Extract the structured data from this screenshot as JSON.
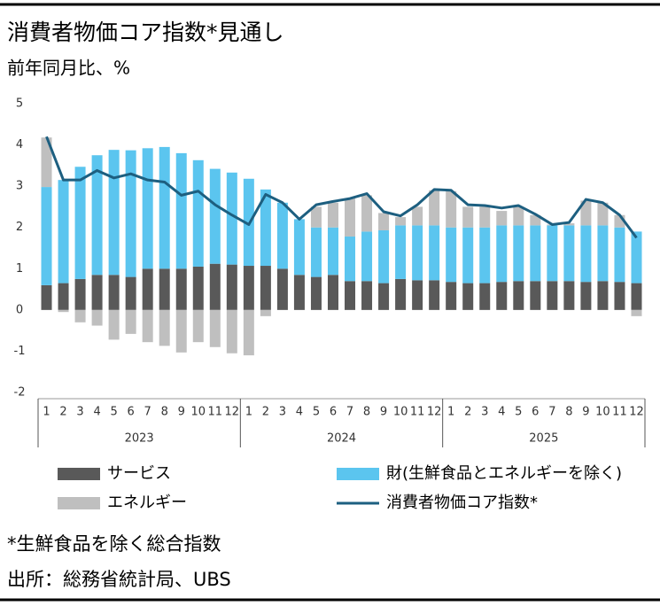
{
  "chart_data": {
    "type": "stacked_bar_line",
    "title": "消費者物価コア指数*見通し",
    "subtitle": "前年同月比、%",
    "notes": [
      "*生鮮食品を除く総合指数",
      "出所：総務省統計局、UBS"
    ],
    "categories": [
      "1",
      "2",
      "3",
      "4",
      "5",
      "6",
      "7",
      "8",
      "9",
      "10",
      "11",
      "12",
      "1",
      "2",
      "3",
      "4",
      "5",
      "6",
      "7",
      "8",
      "9",
      "10",
      "11",
      "12",
      "1",
      "2",
      "3",
      "4",
      "5",
      "6",
      "7",
      "8",
      "9",
      "10",
      "11",
      "12"
    ],
    "groups": [
      "2023",
      "2024",
      "2025"
    ],
    "ylim": [
      -2,
      5
    ],
    "yticks": [
      -2,
      -1,
      0,
      1,
      2,
      3,
      4,
      5
    ],
    "grid": false,
    "series": [
      {
        "name": "サービス",
        "color": "#595959",
        "kind": "bar",
        "values": [
          0.6,
          0.65,
          0.75,
          0.85,
          0.85,
          0.8,
          1.0,
          1.0,
          1.0,
          1.05,
          1.12,
          1.1,
          1.07,
          1.07,
          1.0,
          0.85,
          0.8,
          0.85,
          0.7,
          0.7,
          0.65,
          0.75,
          0.72,
          0.72,
          0.68,
          0.65,
          0.65,
          0.68,
          0.7,
          0.7,
          0.7,
          0.7,
          0.68,
          0.7,
          0.68,
          0.65
        ]
      },
      {
        "name": "財(生鮮食品とエネルギーを除く)",
        "color": "#5bc5ef",
        "kind": "bar",
        "values": [
          2.38,
          2.5,
          2.72,
          2.9,
          3.03,
          3.07,
          2.92,
          2.95,
          2.8,
          2.58,
          2.3,
          2.23,
          2.11,
          1.85,
          1.6,
          1.35,
          1.2,
          1.15,
          1.08,
          1.2,
          1.28,
          1.3,
          1.33,
          1.33,
          1.32,
          1.35,
          1.35,
          1.37,
          1.35,
          1.35,
          1.35,
          1.35,
          1.37,
          1.35,
          1.32,
          1.25
        ]
      },
      {
        "name": "エネルギー",
        "color": "#bfbfbf",
        "kind": "bar",
        "values": [
          1.2,
          -0.05,
          -0.3,
          -0.38,
          -0.72,
          -0.58,
          -0.78,
          -0.87,
          -1.03,
          -0.78,
          -0.9,
          -1.05,
          -1.1,
          -0.15,
          0,
          0,
          0.5,
          0.6,
          0.92,
          0.88,
          0.42,
          0.2,
          0.45,
          0.85,
          0.88,
          0.5,
          0.5,
          0.35,
          0.45,
          0.25,
          0.02,
          0.05,
          0.6,
          0.55,
          0.3,
          -0.15
        ]
      },
      {
        "name": "消費者物価コア指数*",
        "color": "#1d5f80",
        "kind": "line",
        "values": [
          4.2,
          3.15,
          3.15,
          3.38,
          3.2,
          3.3,
          3.15,
          3.1,
          2.78,
          2.88,
          2.55,
          2.3,
          2.07,
          2.8,
          2.6,
          2.2,
          2.55,
          2.63,
          2.7,
          2.82,
          2.38,
          2.28,
          2.55,
          2.92,
          2.9,
          2.55,
          2.53,
          2.47,
          2.53,
          2.32,
          2.07,
          2.12,
          2.68,
          2.6,
          2.3,
          1.75
        ]
      }
    ]
  }
}
